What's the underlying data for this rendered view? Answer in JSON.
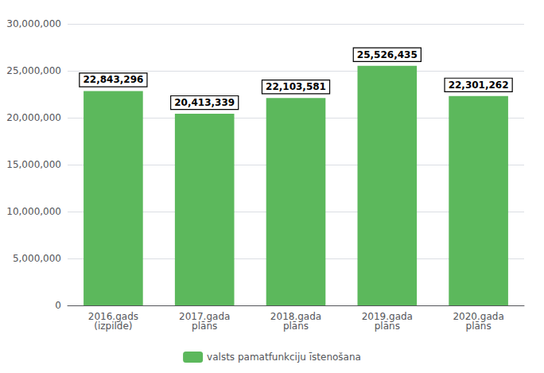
{
  "chart_data": {
    "type": "bar",
    "categories": [
      "2016.gads\n(izpilde)",
      "2017.gada\nplāns",
      "2018.gada\nplāns",
      "2019.gada\nplāns",
      "2020.gada\nplāns"
    ],
    "series": [
      {
        "name": "valsts pamatfunkciju īstenošana",
        "color": "#5cb85c",
        "values": [
          22843296,
          20413339,
          22103581,
          25526435,
          22301262
        ],
        "value_labels": [
          "22,843,296",
          "20,413,339",
          "22,103,581",
          "25,526,435",
          "22,301,262"
        ]
      }
    ],
    "ylim": [
      0,
      30000000
    ],
    "yticks": [
      0,
      {
        "value": 5000000,
        "label": "5,000,000"
      },
      {
        "value": 10000000,
        "label": "10,000,000"
      },
      {
        "value": 15000000,
        "label": "15,000,000"
      },
      {
        "value": 20000000,
        "label": "20,000,000"
      },
      {
        "value": 25000000,
        "label": "25,000,000"
      },
      {
        "value": 30000000,
        "label": "30,000,000"
      }
    ],
    "grid": true,
    "legend": "bottom",
    "data_labels": true
  }
}
